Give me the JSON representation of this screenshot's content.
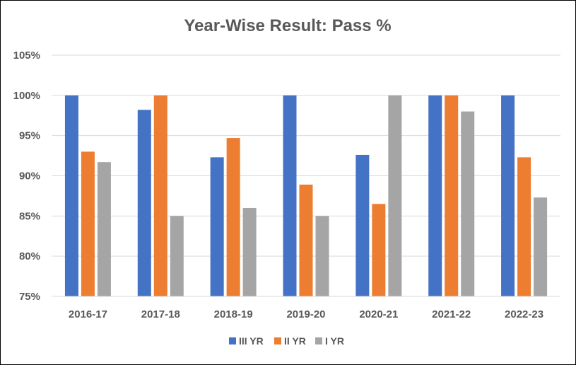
{
  "chart_data": {
    "type": "bar",
    "title": "Year-Wise Result: Pass %",
    "xlabel": "",
    "ylabel": "",
    "categories": [
      "2016-17",
      "2017-18",
      "2018-19",
      "2019-20",
      "2020-21",
      "2021-22",
      "2022-23"
    ],
    "series": [
      {
        "name": "III YR",
        "color": "#4472C4",
        "values": [
          100,
          98.2,
          92.3,
          100,
          92.6,
          100,
          100
        ]
      },
      {
        "name": "II YR",
        "color": "#ED7D31",
        "values": [
          93.0,
          100,
          94.7,
          88.9,
          86.5,
          100,
          92.3
        ]
      },
      {
        "name": "I YR",
        "color": "#A5A5A5",
        "values": [
          91.7,
          85.0,
          86.0,
          85.0,
          100,
          98.0,
          87.3
        ]
      }
    ],
    "ylim": [
      75,
      105
    ],
    "yticks": [
      75,
      80,
      85,
      90,
      95,
      100,
      105
    ],
    "ytick_labels": [
      "75%",
      "80%",
      "85%",
      "90%",
      "95%",
      "100%",
      "105%"
    ],
    "grid": true,
    "legend_position": "bottom"
  }
}
